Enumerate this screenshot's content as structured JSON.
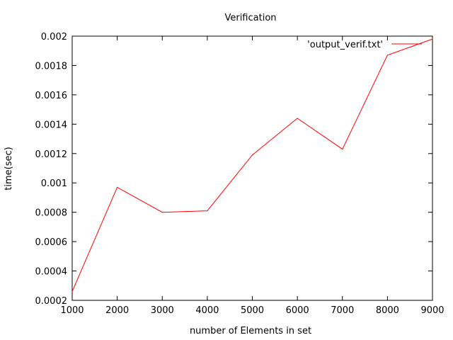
{
  "chart_data": {
    "type": "line",
    "title": "Verification",
    "xlabel": "number of Elements in set",
    "ylabel": "time(sec)",
    "xlim": [
      1000,
      9000
    ],
    "ylim": [
      0.0002,
      0.002
    ],
    "x_ticks": [
      "1000",
      "2000",
      "3000",
      "4000",
      "5000",
      "6000",
      "7000",
      "8000",
      "9000"
    ],
    "y_ticks": [
      "0.0002",
      "0.0004",
      "0.0006",
      "0.0008",
      "0.001",
      "0.0012",
      "0.0014",
      "0.0016",
      "0.0018",
      "0.002"
    ],
    "grid": false,
    "legend_position": "top-right",
    "series": [
      {
        "name": "'output_verif.txt'",
        "color": "#ff0000",
        "x": [
          1000,
          2000,
          3000,
          4000,
          5000,
          6000,
          7000,
          8000,
          9000
        ],
        "y": [
          0.00026,
          0.00097,
          0.0008,
          0.00081,
          0.00119,
          0.00144,
          0.00123,
          0.00187,
          0.00198
        ]
      }
    ]
  }
}
